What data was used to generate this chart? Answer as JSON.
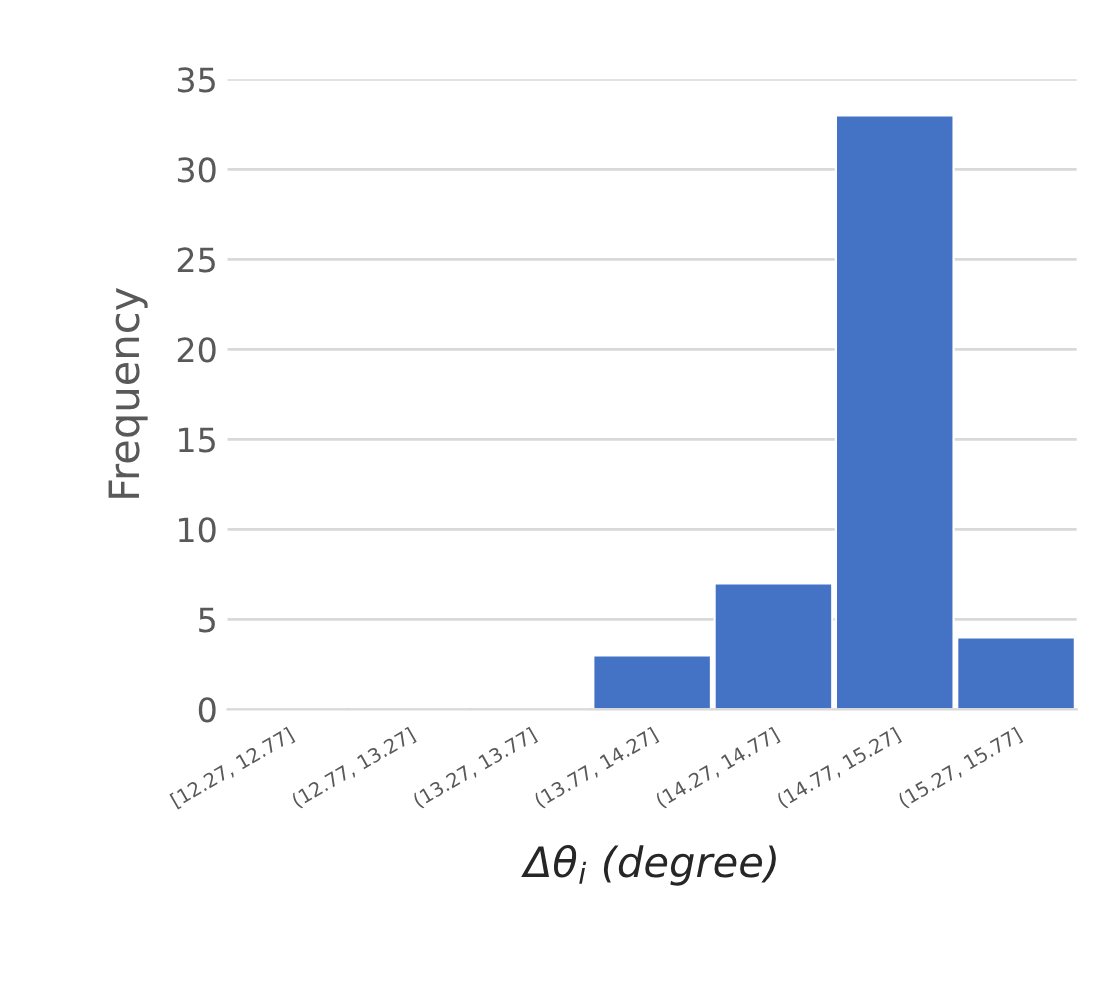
{
  "chart_data": {
    "type": "bar",
    "categories": [
      "[12.27, 12.77]",
      "(12.77, 13.27]",
      "(13.27, 13.77]",
      "(13.77, 14.27]",
      "(14.27, 14.77]",
      "(14.77, 15.27]",
      "(15.27, 15.77]"
    ],
    "values": [
      0,
      0,
      0,
      3,
      7,
      33,
      4
    ],
    "color": "#4472c4",
    "xlabel": "Δθ$_{i}$ (degree)",
    "ylabel": "Frequency",
    "ylim": [
      0,
      35
    ],
    "yticks": [
      0,
      5,
      10,
      15,
      20,
      25,
      30,
      35
    ],
    "grid": "y",
    "legend": false
  }
}
